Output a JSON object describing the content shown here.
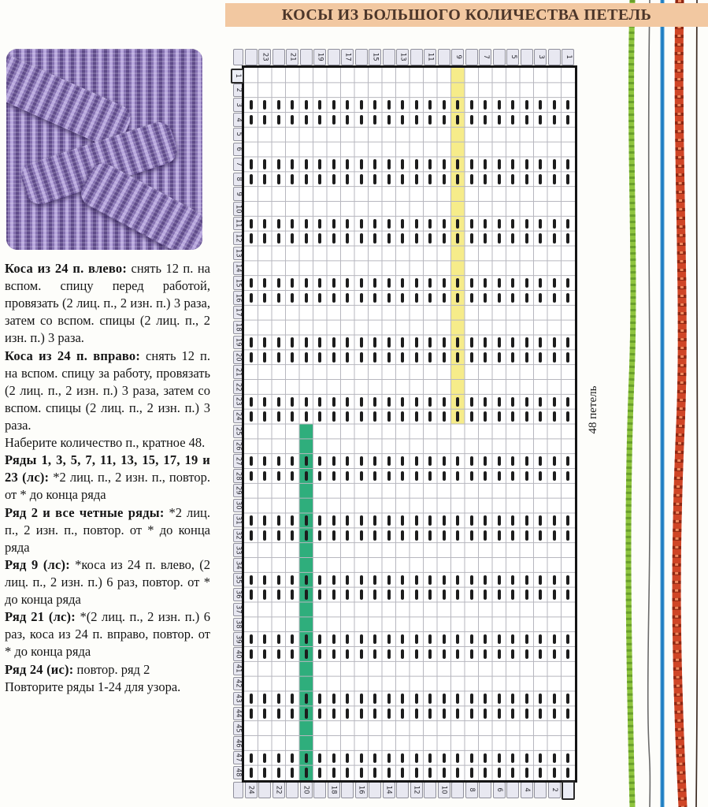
{
  "banner": {
    "title": "КОСЫ ИЗ БОЛЬШОГО КОЛИЧЕСТВА ПЕТЕЛЬ"
  },
  "instructions": {
    "paragraphs": [
      {
        "b": "Коса из 24 п. влево:",
        "t": " снять 12 п. на вспом. спицу перед работой, провязать (2 лиц. п., 2 изн. п.) 3 раза, затем со вспом. спицы (2 лиц. п., 2 изн. п.) 3 раза."
      },
      {
        "b": "Коса из 24 п. вправо:",
        "t": " снять 12 п. на вспом. спицу за работу, провязать (2 лиц. п., 2 изн. п.) 3 раза, затем со вспом. спицы (2 лиц. п., 2 изн. п.) 3 раза."
      },
      {
        "b": "",
        "t": "Наберите количество п., кратное 48."
      },
      {
        "b": "Ряды 1, 3, 5, 7, 11, 13, 15, 17, 19 и 23 (лс):",
        "t": " *2 лиц. п., 2 изн. п., повтор. от * до конца ряда"
      },
      {
        "b": "Ряд 2 и все четные ряды:",
        "t": " *2 лиц. п., 2 изн. п., повтор. от * до конца ряда"
      },
      {
        "b": "Ряд 9 (лс):",
        "t": " *коса из 24 п. влево, (2 лиц. п., 2 изн. п.) 6 раз, повтор. от * до конца ряда"
      },
      {
        "b": "Ряд 21 (лс):",
        "t": " *(2 лиц. п., 2 изн. п.) 6 раз, коса из 24 п. вправо, повтор. от * до конца ряда"
      },
      {
        "b": "Ряд 24 (ис):",
        "t": " повтор. ряд 2"
      },
      {
        "b": "",
        "t": "Повторите ряды 1-24 для узора."
      }
    ]
  },
  "chart": {
    "stitch_count_label": "48 петель",
    "columns": 24,
    "stitch_rows": 48,
    "top_labels": [
      23,
      21,
      19,
      17,
      15,
      13,
      11,
      9,
      7,
      5,
      3,
      1
    ],
    "bottom_labels": [
      24,
      22,
      20,
      18,
      16,
      14,
      12,
      10,
      8,
      6,
      4,
      2
    ],
    "left_labels": [
      1,
      2,
      3,
      4,
      5,
      6,
      7,
      8,
      9,
      10,
      11,
      12,
      13,
      14,
      15,
      16,
      17,
      18,
      19,
      20,
      21,
      22,
      23,
      24,
      25,
      26,
      27,
      28,
      29,
      30,
      31,
      32,
      33,
      34,
      35,
      36,
      37,
      38,
      39,
      40,
      41,
      42,
      43,
      44,
      45,
      46,
      47,
      48
    ],
    "bar_rows": [
      3,
      4,
      7,
      8,
      11,
      12,
      15,
      16,
      19,
      20,
      23,
      24,
      27,
      28,
      31,
      32,
      35,
      36,
      39,
      40,
      43,
      44,
      47,
      48
    ],
    "highlights": [
      {
        "name": "cable-row-9-highlight",
        "column": 9,
        "stitch_from": 1,
        "stitch_to": 24,
        "color": "#f6ec8a"
      },
      {
        "name": "cable-row-21-highlight",
        "column": 20,
        "stitch_from": 25,
        "stitch_to": 48,
        "color": "#2fae7c"
      }
    ]
  },
  "colors": {
    "banner_bg": "#f2c8a1",
    "banner_text": "#4c362a",
    "grid_line": "#b7b7bf",
    "bar": "#1d1d1d",
    "label_box_bg": "#e8e8f1",
    "label_box_border": "#90909c",
    "thread_green": "#8fc53f",
    "thread_green_dark": "#699f2b",
    "thread_gray": "#6a6a6a",
    "thread_blue": "#1e7ec2",
    "thread_red": "#cf4526",
    "thread_red_dark": "#8f2712",
    "thread_dark": "#3c2b22",
    "photo_light": "#b7a6dd",
    "photo_mid": "#8672b1",
    "photo_dark": "#5f4b8a"
  }
}
